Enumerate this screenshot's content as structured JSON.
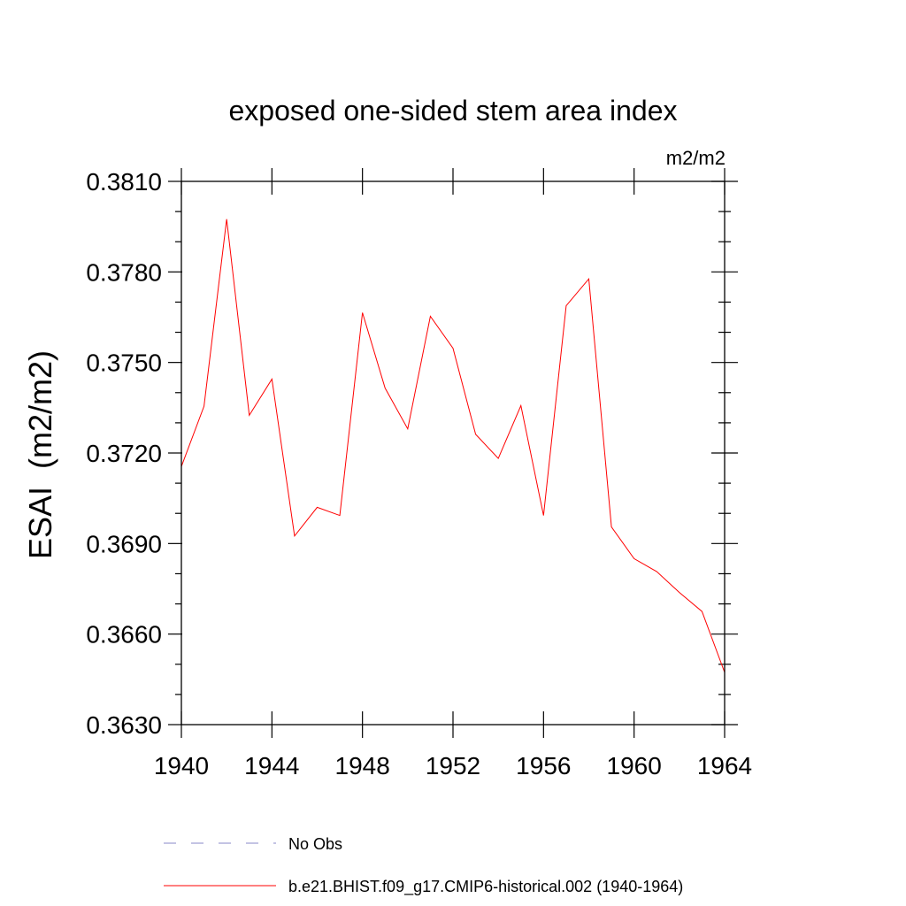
{
  "chart_data": {
    "type": "line",
    "title": "exposed one-sided stem area index",
    "units": "m2/m2",
    "ylabel": "ESAI  (m2/m2)",
    "xlabel": "",
    "xlim": [
      1940,
      1964
    ],
    "ylim": [
      0.363,
      0.381
    ],
    "x_major_ticks": [
      1940,
      1944,
      1948,
      1952,
      1956,
      1960,
      1964
    ],
    "x_tick_labels": [
      "1940",
      "1944",
      "1948",
      "1952",
      "1956",
      "1960",
      "1964"
    ],
    "x_minor_step": 1,
    "y_major_ticks": [
      0.363,
      0.366,
      0.369,
      0.372,
      0.375,
      0.378,
      0.381
    ],
    "y_tick_labels": [
      "0.3630",
      "0.3660",
      "0.3690",
      "0.3720",
      "0.3750",
      "0.3780",
      "0.3810"
    ],
    "y_minor_step": 0.001,
    "grid": false,
    "legend_position": "bottom",
    "series": [
      {
        "name": "b.e21.BHIST.f09_g17.CMIP6-historical.002 (1940-1964)",
        "color": "#ff0000",
        "dash": "solid",
        "x": [
          1940,
          1941,
          1942,
          1943,
          1944,
          1945,
          1946,
          1947,
          1948,
          1949,
          1950,
          1951,
          1952,
          1953,
          1954,
          1955,
          1956,
          1957,
          1958,
          1959,
          1960,
          1961,
          1962,
          1963,
          1964
        ],
        "values": [
          0.37155,
          0.37355,
          0.37975,
          0.37325,
          0.37445,
          0.36925,
          0.3702,
          0.36993,
          0.37665,
          0.37415,
          0.3728,
          0.37653,
          0.37547,
          0.37262,
          0.37182,
          0.37357,
          0.36993,
          0.37688,
          0.37777,
          0.36955,
          0.3685,
          0.36807,
          0.36738,
          0.36675,
          0.36473
        ]
      }
    ],
    "legend": [
      {
        "label": "No Obs",
        "color": "#8a8ac8",
        "dash": "dashed"
      },
      {
        "label": "b.e21.BHIST.f09_g17.CMIP6-historical.002 (1940-1964)",
        "color": "#ff0000",
        "dash": "solid"
      }
    ]
  }
}
